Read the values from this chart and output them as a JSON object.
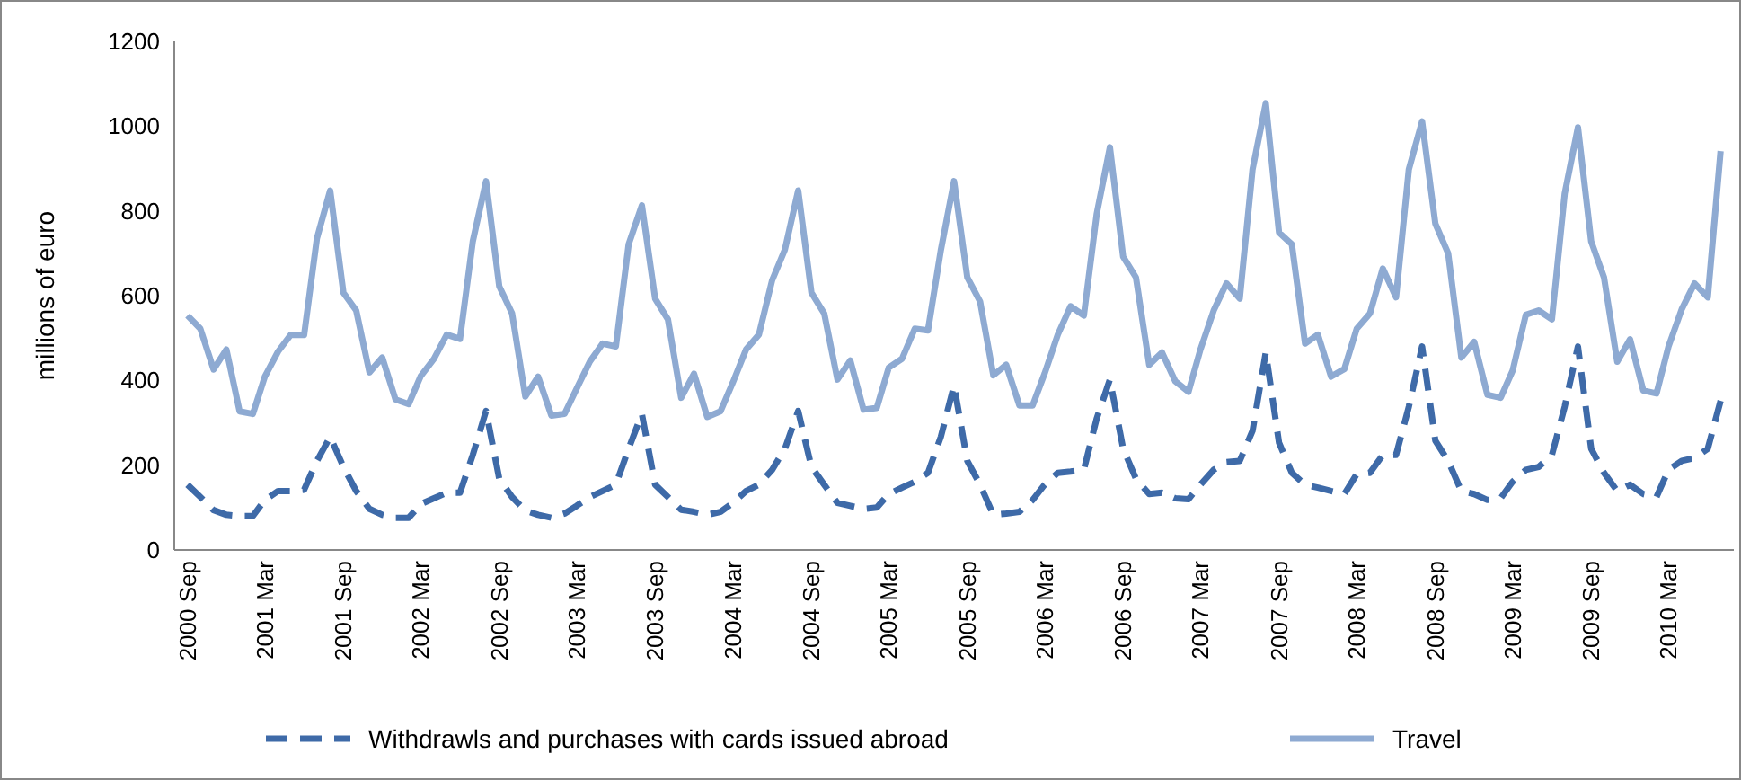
{
  "chart_data": {
    "type": "line",
    "ylabel": "millions of euro",
    "x": [
      "2000-09",
      "2000-10",
      "2000-11",
      "2000-12",
      "2001-01",
      "2001-02",
      "2001-03",
      "2001-04",
      "2001-05",
      "2001-06",
      "2001-07",
      "2001-08",
      "2001-09",
      "2001-10",
      "2001-11",
      "2001-12",
      "2002-01",
      "2002-02",
      "2002-03",
      "2002-04",
      "2002-05",
      "2002-06",
      "2002-07",
      "2002-08",
      "2002-09",
      "2002-10",
      "2002-11",
      "2002-12",
      "2003-01",
      "2003-02",
      "2003-03",
      "2003-04",
      "2003-05",
      "2003-06",
      "2003-07",
      "2003-08",
      "2003-09",
      "2003-10",
      "2003-11",
      "2003-12",
      "2004-01",
      "2004-02",
      "2004-03",
      "2004-04",
      "2004-05",
      "2004-06",
      "2004-07",
      "2004-08",
      "2004-09",
      "2004-10",
      "2004-11",
      "2004-12",
      "2005-01",
      "2005-02",
      "2005-03",
      "2005-04",
      "2005-05",
      "2005-06",
      "2005-07",
      "2005-08",
      "2005-09",
      "2005-10",
      "2005-11",
      "2005-12",
      "2006-01",
      "2006-02",
      "2006-03",
      "2006-04",
      "2006-05",
      "2006-06",
      "2006-07",
      "2006-08",
      "2006-09",
      "2006-10",
      "2006-11",
      "2006-12",
      "2007-01",
      "2007-02",
      "2007-03",
      "2007-04",
      "2007-05",
      "2007-06",
      "2007-07",
      "2007-08",
      "2007-09",
      "2007-10",
      "2007-11",
      "2007-12",
      "2008-01",
      "2008-02",
      "2008-03",
      "2008-04",
      "2008-05",
      "2008-06",
      "2008-07",
      "2008-08",
      "2008-09",
      "2008-10",
      "2008-11",
      "2008-12",
      "2009-01",
      "2009-02",
      "2009-03",
      "2009-04",
      "2009-05",
      "2009-06",
      "2009-07",
      "2009-08",
      "2009-09",
      "2009-10",
      "2009-11",
      "2009-12",
      "2010-01",
      "2010-02",
      "2010-03",
      "2010-04",
      "2010-05",
      "2010-06",
      "2010-07"
    ],
    "series": [
      {
        "name": "Withdrawls and purchases with cards issued abroad",
        "color": "#3e6aa8",
        "line_style": "dashed",
        "values": [
          154,
          125,
          94,
          83,
          80,
          80,
          118,
          139,
          139,
          142,
          210,
          267,
          196,
          139,
          97,
          83,
          76,
          76,
          108,
          122,
          135,
          135,
          224,
          328,
          168,
          125,
          93,
          83,
          76,
          86,
          104,
          125,
          139,
          154,
          239,
          321,
          154,
          125,
          95,
          90,
          83,
          90,
          111,
          139,
          154,
          189,
          239,
          328,
          196,
          154,
          111,
          104,
          97,
          100,
          132,
          147,
          161,
          182,
          267,
          388,
          210,
          154,
          83,
          86,
          90,
          118,
          154,
          182,
          185,
          189,
          310,
          402,
          239,
          168,
          132,
          135,
          122,
          120,
          154,
          189,
          207,
          210,
          281,
          466,
          253,
          182,
          154,
          147,
          139,
          132,
          179,
          182,
          224,
          224,
          338,
          480,
          258,
          210,
          139,
          132,
          118,
          122,
          161,
          189,
          196,
          224,
          338,
          480,
          239,
          182,
          139,
          154,
          132,
          125,
          189,
          210,
          217,
          239,
          352
        ]
      },
      {
        "name": "Travel",
        "color": "#8eaad2",
        "line_style": "solid",
        "values": [
          553,
          522,
          426,
          473,
          327,
          321,
          409,
          468,
          508,
          507,
          735,
          848,
          607,
          565,
          419,
          454,
          355,
          344,
          410,
          451,
          508,
          498,
          728,
          870,
          622,
          558,
          362,
          409,
          317,
          321,
          380,
          444,
          487,
          480,
          721,
          813,
          593,
          544,
          359,
          416,
          314,
          327,
          395,
          473,
          508,
          636,
          709,
          848,
          607,
          558,
          402,
          447,
          331,
          335,
          430,
          451,
          522,
          518,
          707,
          870,
          643,
          586,
          412,
          437,
          341,
          341,
          416,
          508,
          575,
          553,
          792,
          950,
          692,
          643,
          437,
          466,
          398,
          373,
          473,
          565,
          629,
          593,
          898,
          1054,
          749,
          721,
          487,
          508,
          409,
          427,
          522,
          558,
          664,
          596,
          898,
          1011,
          770,
          700,
          454,
          491,
          366,
          359,
          423,
          555,
          565,
          544,
          841,
          997,
          728,
          643,
          444,
          497,
          376,
          369,
          480,
          568,
          629,
          596,
          941
        ]
      }
    ],
    "xlim": [
      "2000-08",
      "2010-08"
    ],
    "xticks": [
      {
        "value": "2000-09",
        "label": "2000 Sep"
      },
      {
        "value": "2001-03",
        "label": "2001 Mar"
      },
      {
        "value": "2001-09",
        "label": "2001 Sep"
      },
      {
        "value": "2002-03",
        "label": "2002 Mar"
      },
      {
        "value": "2002-09",
        "label": "2002 Sep"
      },
      {
        "value": "2003-03",
        "label": "2003 Mar"
      },
      {
        "value": "2003-09",
        "label": "2003 Sep"
      },
      {
        "value": "2004-03",
        "label": "2004 Mar"
      },
      {
        "value": "2004-09",
        "label": "2004 Sep"
      },
      {
        "value": "2005-03",
        "label": "2005 Mar"
      },
      {
        "value": "2005-09",
        "label": "2005 Sep"
      },
      {
        "value": "2006-03",
        "label": "2006 Mar"
      },
      {
        "value": "2006-09",
        "label": "2006 Sep"
      },
      {
        "value": "2007-03",
        "label": "2007 Mar"
      },
      {
        "value": "2007-09",
        "label": "2007 Sep"
      },
      {
        "value": "2008-03",
        "label": "2008 Mar"
      },
      {
        "value": "2008-09",
        "label": "2008 Sep"
      },
      {
        "value": "2009-03",
        "label": "2009 Mar"
      },
      {
        "value": "2009-09",
        "label": "2009 Sep"
      },
      {
        "value": "2010-03",
        "label": "2010 Mar"
      }
    ],
    "ylim": [
      0,
      1200
    ],
    "yticks": [
      0,
      200,
      400,
      600,
      800,
      1000,
      1200
    ],
    "grid": false,
    "legend": "bottom",
    "marker": "none"
  }
}
